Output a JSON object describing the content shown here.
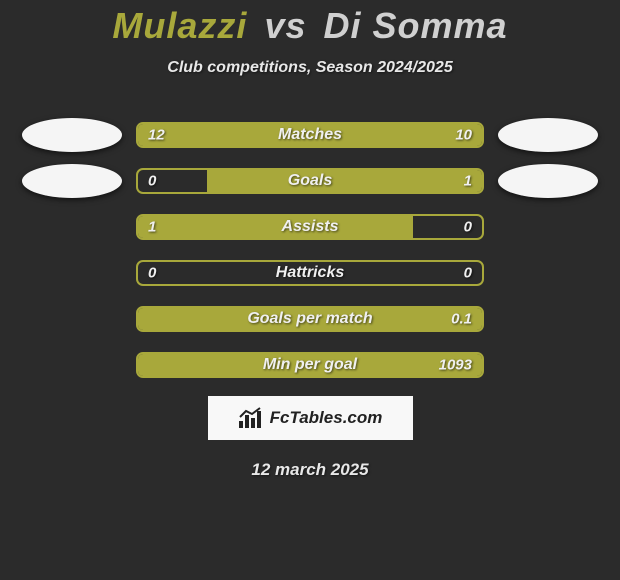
{
  "title": {
    "player1": "Mulazzi",
    "vs": "vs",
    "player2": "Di Somma"
  },
  "subtitle": "Club competitions, Season 2024/2025",
  "colors": {
    "accent": "#a8a83b",
    "background": "#2b2b2b",
    "avatar_bg": "#f5f5f5",
    "text": "#f0f0f0"
  },
  "stats": [
    {
      "label": "Matches",
      "left_val": "12",
      "right_val": "10",
      "left_pct": 54.5,
      "right_pct": 45.5,
      "show_avatars": true
    },
    {
      "label": "Goals",
      "left_val": "0",
      "right_val": "1",
      "left_pct": 0,
      "right_pct": 80,
      "show_avatars": true
    },
    {
      "label": "Assists",
      "left_val": "1",
      "right_val": "0",
      "left_pct": 80,
      "right_pct": 0,
      "show_avatars": false
    },
    {
      "label": "Hattricks",
      "left_val": "0",
      "right_val": "0",
      "left_pct": 0,
      "right_pct": 0,
      "show_avatars": false
    },
    {
      "label": "Goals per match",
      "left_val": "",
      "right_val": "0.1",
      "left_pct": 0,
      "right_pct": 100,
      "show_avatars": false
    },
    {
      "label": "Min per goal",
      "left_val": "",
      "right_val": "1093",
      "left_pct": 0,
      "right_pct": 100,
      "show_avatars": false
    }
  ],
  "footer": {
    "brand": "FcTables.com"
  },
  "date": "12 march 2025"
}
